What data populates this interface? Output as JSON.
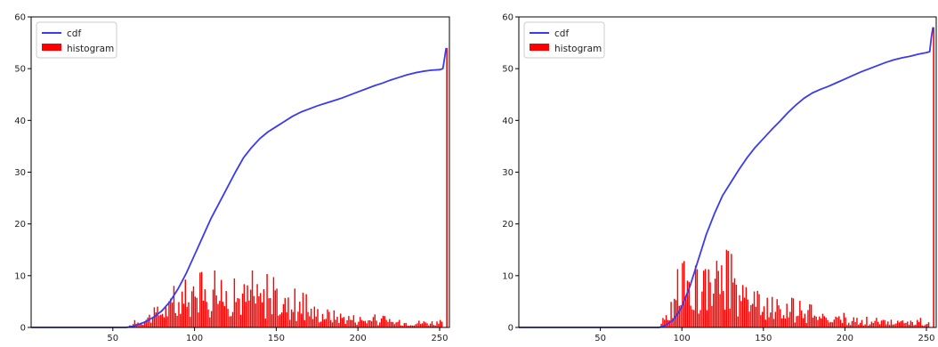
{
  "chart_data": [
    {
      "type": "line+histogram",
      "title": "",
      "xlabel": "",
      "ylabel": "",
      "xlim": [
        0,
        256
      ],
      "ylim": [
        0,
        60
      ],
      "x_ticks": [
        50,
        100,
        150,
        200,
        250
      ],
      "y_ticks": [
        0,
        10,
        20,
        30,
        40,
        50,
        60
      ],
      "grid": false,
      "legend": {
        "placement": "top-left",
        "entries": [
          "cdf",
          "histogram"
        ]
      },
      "colors": {
        "cdf": "#3a3af0",
        "histogram": "#ff0000"
      },
      "series": [
        {
          "name": "cdf",
          "type": "line",
          "x": [
            0,
            58,
            62,
            66,
            70,
            75,
            80,
            85,
            90,
            95,
            100,
            105,
            110,
            115,
            120,
            125,
            130,
            135,
            140,
            145,
            150,
            155,
            160,
            165,
            170,
            175,
            180,
            185,
            190,
            195,
            200,
            205,
            210,
            215,
            220,
            225,
            230,
            235,
            240,
            245,
            250,
            252,
            253,
            254
          ],
          "y": [
            0,
            0,
            0.2,
            0.6,
            1.1,
            2.0,
            3.2,
            5.0,
            7.5,
            10.5,
            14.0,
            17.5,
            21.0,
            24.0,
            27.0,
            30.0,
            32.8,
            34.8,
            36.5,
            37.8,
            38.8,
            39.8,
            40.8,
            41.6,
            42.2,
            42.8,
            43.3,
            43.8,
            44.3,
            44.9,
            45.5,
            46.1,
            46.7,
            47.2,
            47.8,
            48.3,
            48.8,
            49.2,
            49.5,
            49.7,
            49.8,
            50.0,
            52.0,
            54.0
          ]
        },
        {
          "name": "histogram",
          "type": "histogram",
          "bins": "1 per intensity level",
          "peak_region": [
            85,
            160
          ],
          "max_count": 11,
          "edge_spike_at": 254
        }
      ]
    },
    {
      "type": "line+histogram",
      "title": "",
      "xlabel": "",
      "ylabel": "",
      "xlim": [
        0,
        256
      ],
      "ylim": [
        0,
        60
      ],
      "x_ticks": [
        50,
        100,
        150,
        200,
        250
      ],
      "y_ticks": [
        0,
        10,
        20,
        30,
        40,
        50,
        60
      ],
      "grid": false,
      "legend": {
        "placement": "top-left",
        "entries": [
          "cdf",
          "histogram"
        ]
      },
      "colors": {
        "cdf": "#3a3af0",
        "histogram": "#ff0000"
      },
      "series": [
        {
          "name": "cdf",
          "type": "line",
          "x": [
            0,
            86,
            90,
            95,
            100,
            105,
            110,
            115,
            120,
            125,
            130,
            135,
            140,
            145,
            150,
            155,
            160,
            165,
            170,
            175,
            180,
            185,
            190,
            195,
            200,
            205,
            210,
            215,
            220,
            225,
            230,
            235,
            240,
            245,
            250,
            252,
            253,
            254
          ],
          "y": [
            0,
            0,
            0.4,
            1.5,
            4.0,
            8.0,
            13.0,
            18.0,
            22.0,
            25.5,
            28.0,
            30.5,
            32.8,
            34.8,
            36.5,
            38.2,
            39.8,
            41.5,
            43.0,
            44.3,
            45.3,
            46.0,
            46.6,
            47.3,
            48.0,
            48.7,
            49.4,
            50.0,
            50.6,
            51.2,
            51.7,
            52.1,
            52.4,
            52.8,
            53.1,
            53.3,
            56.0,
            58.0
          ]
        },
        {
          "name": "histogram",
          "type": "histogram",
          "bins": "1 per intensity level",
          "peak_region": [
            95,
            140
          ],
          "max_count": 15,
          "edge_spike_at": 254
        }
      ]
    }
  ]
}
